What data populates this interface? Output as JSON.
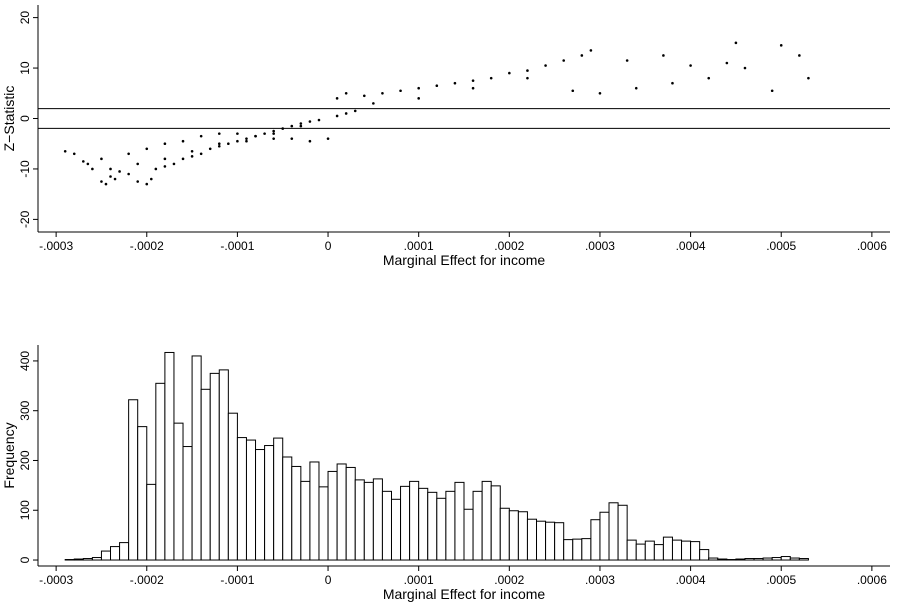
{
  "chart_data": [
    {
      "type": "scatter",
      "x_label": "Marginal Effect for income",
      "y_label": "Z−Statistic",
      "color": "#000000",
      "reference_lines": [
        1.96,
        -1.96
      ],
      "xlim": [
        -0.00032,
        0.00062
      ],
      "ylim": [
        -22.5,
        22.5
      ],
      "xticks": [
        {
          "value": -0.0003,
          "label": "-.0003"
        },
        {
          "value": -0.0002,
          "label": "-.0002"
        },
        {
          "value": -0.0001,
          "label": "-.0001"
        },
        0,
        {
          "value": 0.0001,
          "label": ".0001"
        },
        {
          "value": 0.0002,
          "label": ".0002"
        },
        {
          "value": 0.0003,
          "label": ".0003"
        },
        {
          "value": 0.0004,
          "label": ".0004"
        },
        {
          "value": 0.0005,
          "label": ".0005"
        },
        {
          "value": 0.0006,
          "label": ".0006"
        }
      ],
      "yticks": [
        -20,
        -10,
        0,
        10,
        20
      ],
      "x": [
        -0.00029,
        -0.00028,
        -0.00027,
        -0.000265,
        -0.00026,
        -0.00025,
        -0.000245,
        -0.00024,
        -0.000235,
        -0.00023,
        -0.00022,
        -0.00021,
        -0.0002,
        -0.000195,
        -0.00019,
        -0.00018,
        -0.00017,
        -0.00016,
        -0.00015,
        -0.00014,
        -0.00013,
        -0.00012,
        -0.00011,
        -0.0001,
        -9e-05,
        -8e-05,
        -7e-05,
        -6e-05,
        -5e-05,
        -4e-05,
        -3e-05,
        -2e-05,
        -1e-05,
        -0.00025,
        -0.00022,
        -0.0002,
        -0.00018,
        -0.00016,
        -0.00014,
        -0.00012,
        -0.0001,
        -8e-05,
        -6e-05,
        -4e-05,
        -2e-05,
        0,
        -0.00024,
        -0.00021,
        -0.00018,
        -0.00015,
        -0.00012,
        -9e-05,
        -6e-05,
        -3e-05,
        1e-05,
        2e-05,
        3e-05,
        1e-05,
        2e-05,
        4e-05,
        6e-05,
        8e-05,
        0.0001,
        0.00012,
        0.00014,
        0.00016,
        0.00018,
        0.0002,
        0.00022,
        0.00024,
        0.00026,
        0.00028,
        0.00029,
        5e-05,
        0.0001,
        0.00016,
        0.00022,
        0.00027,
        0.0003,
        0.00034,
        0.00038,
        0.00042,
        0.00046,
        0.00033,
        0.00037,
        0.0004,
        0.00044,
        0.00045,
        0.00049,
        0.0005,
        0.00052,
        0.00053
      ],
      "values": [
        -6.5,
        -7,
        -8.5,
        -9,
        -10,
        -12.5,
        -13,
        -11.5,
        -12,
        -10.5,
        -11,
        -12.5,
        -13,
        -12,
        -10,
        -9.5,
        -9,
        -8,
        -7.5,
        -7,
        -6,
        -5.5,
        -5,
        -4.5,
        -4,
        -3.5,
        -3,
        -2.5,
        -2,
        -1.5,
        -1,
        -0.6,
        -0.3,
        -8,
        -7,
        -6,
        -5,
        -4.5,
        -3.5,
        -3,
        -3,
        -3.5,
        -4,
        -4,
        -4.5,
        -4,
        -10,
        -9,
        -8,
        -6.5,
        -5,
        -4.5,
        -3,
        -1.5,
        0.5,
        1,
        1.5,
        4,
        5,
        4.5,
        5,
        5.5,
        6,
        6.5,
        7,
        7.5,
        8,
        9,
        9.5,
        10.5,
        11.5,
        12.5,
        13.5,
        3,
        4,
        6,
        8,
        5.5,
        5,
        6,
        7,
        8,
        10,
        11.5,
        12.5,
        10.5,
        11,
        15,
        5.5,
        14.5,
        12.5,
        8
      ]
    },
    {
      "type": "histogram",
      "x_label": "Marginal Effect for income",
      "y_label": "Frequency",
      "color": "#ffffff",
      "edge_color": "#000000",
      "xlim": [
        -0.00032,
        0.00062
      ],
      "ylim": [
        -12,
        432
      ],
      "xticks": [
        {
          "value": -0.0003,
          "label": "-.0003"
        },
        {
          "value": -0.0002,
          "label": "-.0002"
        },
        {
          "value": -0.0001,
          "label": "-.0001"
        },
        0,
        {
          "value": 0.0001,
          "label": ".0001"
        },
        {
          "value": 0.0002,
          "label": ".0002"
        },
        {
          "value": 0.0003,
          "label": ".0003"
        },
        {
          "value": 0.0004,
          "label": ".0004"
        },
        {
          "value": 0.0005,
          "label": ".0005"
        },
        {
          "value": 0.0006,
          "label": ".0006"
        }
      ],
      "yticks": [
        0,
        100,
        200,
        300,
        400
      ],
      "bins": [
        -0.00029,
        -0.00028,
        -0.00027,
        -0.00026,
        -0.00025,
        -0.00024,
        -0.00023,
        -0.00022,
        -0.00021,
        -0.0002,
        -0.00019,
        -0.00018,
        -0.00017,
        -0.00016,
        -0.00015,
        -0.00014,
        -0.00013,
        -0.00012,
        -0.00011,
        -0.0001,
        -9e-05,
        -8e-05,
        -7e-05,
        -6e-05,
        -5e-05,
        -4e-05,
        -3e-05,
        -2e-05,
        -1e-05,
        0,
        1e-05,
        2e-05,
        3e-05,
        4e-05,
        5e-05,
        6e-05,
        7e-05,
        8e-05,
        9e-05,
        0.0001,
        0.00011,
        0.00012,
        0.00013,
        0.00014,
        0.00015,
        0.00016,
        0.00017,
        0.00018,
        0.00019,
        0.0002,
        0.00021,
        0.00022,
        0.00023,
        0.00024,
        0.00025,
        0.00026,
        0.00027,
        0.00028,
        0.00029,
        0.0003,
        0.00031,
        0.00032,
        0.00033,
        0.00034,
        0.00035,
        0.00036,
        0.00037,
        0.00038,
        0.00039,
        0.0004,
        0.00041,
        0.00042,
        0.00043,
        0.00044,
        0.00045,
        0.00046,
        0.00047,
        0.00048,
        0.00049,
        0.0005,
        0.00051,
        0.00052,
        0.00053
      ],
      "values": [
        1,
        2,
        3,
        5,
        18,
        27,
        35,
        322,
        268,
        152,
        355,
        417,
        275,
        228,
        410,
        343,
        375,
        382,
        295,
        246,
        241,
        222,
        230,
        245,
        207,
        188,
        158,
        197,
        147,
        178,
        193,
        186,
        161,
        156,
        163,
        138,
        122,
        148,
        158,
        144,
        136,
        124,
        138,
        156,
        102,
        138,
        158,
        149,
        104,
        99,
        97,
        82,
        78,
        76,
        75,
        41,
        42,
        43,
        81,
        96,
        115,
        110,
        40,
        32,
        38,
        31,
        46,
        40,
        38,
        37,
        21,
        4,
        2,
        1,
        2,
        3,
        3,
        4,
        5,
        7,
        4,
        3
      ]
    }
  ]
}
